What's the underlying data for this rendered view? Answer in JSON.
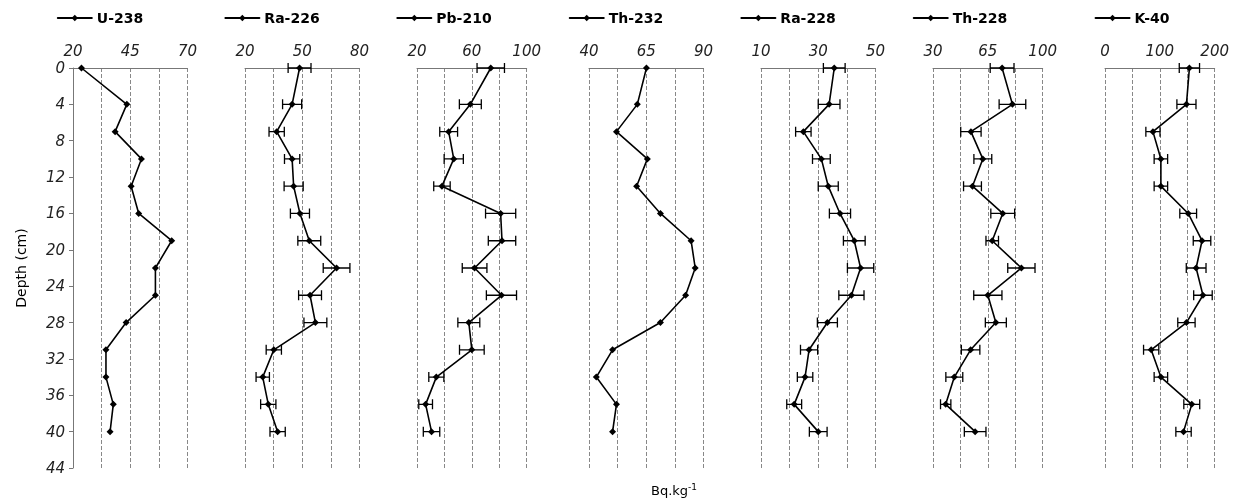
{
  "chart_data": [
    {
      "type": "line",
      "ylabel": "Depth (cm)",
      "legend": "top",
      "marker": "diamond",
      "line_style": "solid",
      "grid": "x",
      "xlim": [
        20,
        70
      ],
      "xticks": [
        20,
        {
          "value": 32.5,
          "label": null
        },
        45,
        {
          "value": 57.5,
          "label": null
        },
        70
      ],
      "ylim": [
        44,
        0
      ],
      "yticks": [
        0,
        4,
        8,
        12,
        16,
        20,
        24,
        28,
        32,
        36,
        40,
        44
      ],
      "series": [
        {
          "name": "U-238",
          "color": "#000000",
          "x": [
            23.7,
            43.5,
            38.4,
            49.9,
            45.4,
            48.7,
            63.1,
            56,
            56,
            43.2,
            34.4,
            34.4,
            37.6,
            36.2
          ],
          "values": [
            0,
            4,
            7,
            10,
            13,
            16,
            19,
            22,
            25,
            28,
            31,
            34,
            37,
            40
          ]
        }
      ]
    },
    {
      "type": "line",
      "legend": "top",
      "marker": "diamond",
      "line_style": "solid",
      "grid": "x",
      "tick_labels": "x",
      "xlim": [
        20,
        80
      ],
      "xticks": [
        20,
        {
          "value": 35,
          "label": null
        },
        50,
        {
          "value": 65,
          "label": null
        },
        80
      ],
      "ylim": [
        44,
        0
      ],
      "yticks": [
        0,
        4,
        8,
        12,
        16,
        20,
        24,
        28,
        32,
        36,
        40,
        44
      ],
      "series": [
        {
          "name": "Ra-226",
          "color": "#000000",
          "x": [
            48.6,
            44.7,
            36.6,
            44.7,
            45.5,
            48.8,
            53.7,
            68,
            54.1,
            56.9,
            35.1,
            29.3,
            32.2,
            37.1
          ],
          "values": [
            0,
            4,
            7,
            10,
            13,
            16,
            19,
            22,
            25,
            28,
            31,
            34,
            37,
            40
          ],
          "xerrors": [
            6,
            5,
            4,
            4,
            5,
            5,
            6,
            7,
            6,
            6,
            4,
            3.5,
            4,
            4
          ]
        }
      ]
    },
    {
      "type": "line",
      "legend": "top",
      "marker": "diamond",
      "line_style": "solid",
      "grid": "x",
      "tick_labels": "x",
      "xlim": [
        20,
        100
      ],
      "xticks": [
        20,
        {
          "value": 40,
          "label": null
        },
        60,
        {
          "value": 80,
          "label": null
        },
        100
      ],
      "ylim": [
        44,
        0
      ],
      "yticks": [
        0,
        4,
        8,
        12,
        16,
        20,
        24,
        28,
        32,
        36,
        40,
        44
      ],
      "series": [
        {
          "name": "Pb-210",
          "color": "#000000",
          "x": [
            73.8,
            58.9,
            43.1,
            46.8,
            38.2,
            81,
            82,
            62,
            81.6,
            57.8,
            60,
            34.1,
            26.3,
            30.6
          ],
          "values": [
            0,
            4,
            7,
            10,
            13,
            16,
            19,
            22,
            25,
            28,
            31,
            34,
            37,
            40
          ],
          "xerrors": [
            10,
            8,
            6.5,
            7,
            6,
            11,
            10,
            9,
            11,
            8,
            9,
            5.5,
            5,
            6
          ]
        }
      ]
    },
    {
      "type": "line",
      "xlabel": "Bq.kg$^{-1}$",
      "legend": "top",
      "marker": "diamond",
      "line_style": "solid",
      "grid": "x",
      "tick_labels": "x",
      "xlim": [
        40,
        90
      ],
      "xticks": [
        40,
        {
          "value": 52.5,
          "label": null
        },
        65,
        {
          "value": 77.5,
          "label": null
        },
        90
      ],
      "ylim": [
        44,
        0
      ],
      "yticks": [
        0,
        4,
        8,
        12,
        16,
        20,
        24,
        28,
        32,
        36,
        40,
        44
      ],
      "series": [
        {
          "name": "Th-232",
          "color": "#000000",
          "x": [
            65.1,
            61.1,
            52,
            65.5,
            60.8,
            71.2,
            84.6,
            86.4,
            82.2,
            71.2,
            50.3,
            43.2,
            52,
            50.3
          ],
          "values": [
            0,
            4,
            7,
            10,
            13,
            16,
            19,
            22,
            25,
            28,
            31,
            34,
            37,
            40
          ]
        }
      ]
    },
    {
      "type": "line",
      "legend": "top",
      "marker": "diamond",
      "line_style": "solid",
      "grid": "x",
      "tick_labels": "x",
      "xlim": [
        10,
        50
      ],
      "xticks": [
        10,
        {
          "value": 20,
          "label": null
        },
        30,
        {
          "value": 40,
          "label": null
        },
        50
      ],
      "ylim": [
        44,
        0
      ],
      "yticks": [
        0,
        4,
        8,
        12,
        16,
        20,
        24,
        28,
        32,
        36,
        40,
        44
      ],
      "series": [
        {
          "name": "Ra-228",
          "color": "#000000",
          "x": [
            35.6,
            33.8,
            24.8,
            31.1,
            33.5,
            37.6,
            42.6,
            44.8,
            41.6,
            33.2,
            26.8,
            25.4,
            21.6,
            30
          ],
          "values": [
            0,
            4,
            7,
            10,
            13,
            16,
            19,
            22,
            25,
            28,
            31,
            34,
            37,
            40
          ],
          "xerrors": [
            3.8,
            3.8,
            2.7,
            3.1,
            3.5,
            3.7,
            3.8,
            4.6,
            4.4,
            3.5,
            3,
            2.7,
            2.6,
            3.1
          ]
        }
      ]
    },
    {
      "type": "line",
      "legend": "top",
      "marker": "diamond",
      "line_style": "solid",
      "grid": "x",
      "tick_labels": "x",
      "xlim": [
        30,
        100
      ],
      "xticks": [
        30,
        {
          "value": 47.5,
          "label": null
        },
        65,
        {
          "value": 82.5,
          "label": null
        },
        100
      ],
      "ylim": [
        44,
        0
      ],
      "yticks": [
        0,
        4,
        8,
        12,
        16,
        20,
        24,
        28,
        32,
        36,
        40,
        44
      ],
      "series": [
        {
          "name": "Th-228",
          "color": "#000000",
          "x": [
            74.1,
            80.7,
            54.2,
            61.8,
            55.2,
            74.5,
            67.8,
            86.4,
            65,
            70.1,
            54,
            43.6,
            38.1,
            56.9
          ],
          "values": [
            0,
            4,
            7,
            10,
            13,
            16,
            19,
            22,
            25,
            28,
            31,
            34,
            37,
            40
          ],
          "xerrors": [
            7.6,
            8.5,
            6.5,
            5.7,
            5.7,
            7.6,
            4,
            8.7,
            9,
            6.7,
            5.9,
            5.4,
            3.3,
            6.9
          ]
        }
      ]
    },
    {
      "type": "line",
      "legend": "top",
      "marker": "diamond",
      "line_style": "solid",
      "grid": "x",
      "tick_labels": "x",
      "xlim": [
        0,
        200
      ],
      "xticks": [
        0,
        {
          "value": 50,
          "label": null
        },
        100,
        {
          "value": 150,
          "label": null
        },
        200
      ],
      "ylim": [
        44,
        0
      ],
      "yticks": [
        0,
        4,
        8,
        12,
        16,
        20,
        24,
        28,
        32,
        36,
        40,
        44
      ],
      "series": [
        {
          "name": "K-40",
          "color": "#000000",
          "x": [
            153.9,
            148.5,
            87.4,
            101.9,
            101.9,
            151.7,
            176.9,
            166.2,
            178.6,
            148.5,
            84.2,
            101.9,
            158.2,
            143.2
          ],
          "values": [
            0,
            4,
            7,
            10,
            13,
            16,
            19,
            22,
            25,
            28,
            31,
            34,
            37,
            40
          ],
          "xerrors": [
            18.5,
            17.4,
            12.9,
            12.3,
            12.3,
            15.3,
            16,
            18,
            16.9,
            15.8,
            13.9,
            12.3,
            14.5,
            14
          ]
        }
      ]
    }
  ]
}
